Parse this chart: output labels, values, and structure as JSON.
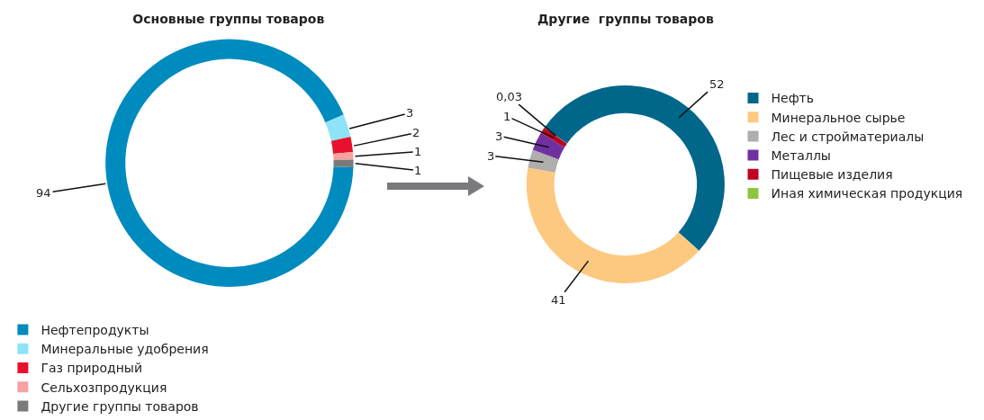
{
  "chart_data": [
    {
      "type": "donut",
      "title": "Основные группы товаров",
      "categories": [
        "Нефтепродукты",
        "Минеральные удобрения",
        "Газ природный",
        "Сельхозпродукция",
        "Другие группы товаров"
      ],
      "values": [
        94,
        3,
        2,
        1,
        1
      ],
      "colors": [
        "#008bbf",
        "#8fe3f8",
        "#e8112d",
        "#f7a1a1",
        "#7a7a7c"
      ],
      "data_labels": true,
      "legend": "bottom"
    },
    {
      "type": "donut",
      "title": "Другие  группы товаров",
      "categories": [
        "Нефть",
        "Минеральное сырье",
        "Лес и стройматериалы",
        "Металлы",
        "Пищевые изделия",
        "Иная химическая продукция"
      ],
      "values": [
        52,
        41,
        3,
        3,
        1,
        0.03
      ],
      "value_labels": [
        "52",
        "41",
        "3",
        "3",
        "1",
        "0,03"
      ],
      "colors": [
        "#00678a",
        "#fdc980",
        "#b0adad",
        "#7030a0",
        "#c00020",
        "#8dc63f"
      ],
      "legend": "right"
    }
  ]
}
